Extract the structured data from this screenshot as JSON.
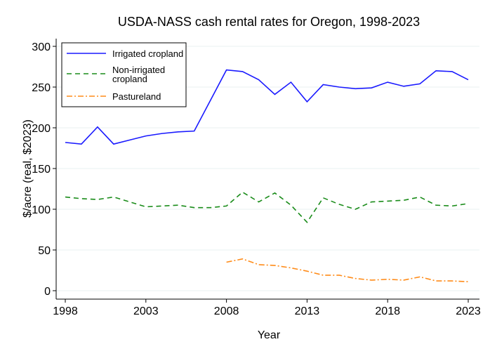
{
  "chart_data": {
    "type": "line",
    "title": "USDA-NASS cash rental rates for Oregon, 1998-2023",
    "xlabel": "Year",
    "ylabel": "$/acre (real, $2023)",
    "xlim": [
      1998,
      2023
    ],
    "ylim": [
      0,
      300
    ],
    "xticks": [
      1998,
      2003,
      2008,
      2013,
      2018,
      2023
    ],
    "yticks": [
      0,
      50,
      100,
      150,
      200,
      250,
      300
    ],
    "grid": true,
    "legend_position": "top-left",
    "x": [
      1998,
      1999,
      2000,
      2001,
      2002,
      2003,
      2004,
      2005,
      2006,
      2007,
      2008,
      2009,
      2010,
      2011,
      2012,
      2013,
      2014,
      2015,
      2016,
      2017,
      2018,
      2019,
      2020,
      2021,
      2022,
      2023
    ],
    "series": [
      {
        "name": "Irrigated cropland",
        "color": "#1a1aff",
        "dash": "",
        "values": [
          182,
          180,
          201,
          180,
          185,
          190,
          193,
          195,
          196,
          null,
          271,
          269,
          259,
          241,
          256,
          232,
          253,
          250,
          248,
          249,
          256,
          251,
          254,
          270,
          269,
          259
        ]
      },
      {
        "name": "Non-irrigated cropland",
        "color": "#1a8c1a",
        "dash": "7,5",
        "values": [
          115,
          113,
          112,
          115,
          109,
          103,
          104,
          105,
          102,
          102,
          104,
          121,
          109,
          120,
          105,
          84,
          114,
          106,
          100,
          109,
          110,
          111,
          115,
          105,
          104,
          107
        ]
      },
      {
        "name": "Pastureland",
        "color": "#ff8c1a",
        "dash": "8,3,2,3",
        "values": [
          null,
          null,
          null,
          null,
          null,
          null,
          null,
          null,
          null,
          null,
          35,
          39,
          32,
          31,
          28,
          24,
          19,
          19,
          15,
          13,
          14,
          13,
          17,
          12,
          12,
          11
        ]
      }
    ]
  }
}
